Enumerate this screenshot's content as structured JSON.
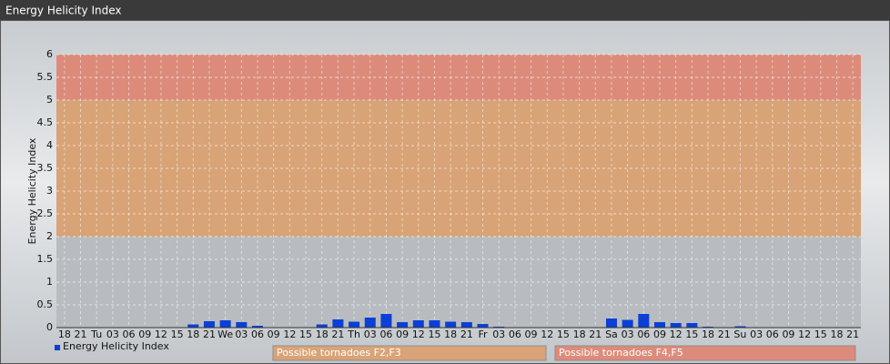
{
  "chart_data": {
    "type": "bar",
    "header": "Energy Helicity Index",
    "y_label": "Energy Helicity Index",
    "categories": [
      "18",
      "21",
      "Tu",
      "03",
      "06",
      "09",
      "12",
      "15",
      "18",
      "21",
      "We",
      "03",
      "06",
      "09",
      "12",
      "15",
      "18",
      "21",
      "Th",
      "03",
      "06",
      "09",
      "12",
      "15",
      "18",
      "21",
      "Fr",
      "03",
      "06",
      "09",
      "12",
      "15",
      "18",
      "21",
      "Sa",
      "03",
      "06",
      "09",
      "12",
      "15",
      "18",
      "21",
      "Su",
      "03",
      "06",
      "09",
      "12",
      "15",
      "18",
      "21"
    ],
    "series": [
      {
        "name": "Energy Helicity Index",
        "color": "#0b3fd6",
        "values": [
          0.01,
          0.01,
          0.01,
          0.01,
          0.01,
          0.01,
          0.01,
          0.01,
          0.07,
          0.14,
          0.16,
          0.12,
          0.04,
          0.01,
          0.01,
          0.01,
          0.07,
          0.18,
          0.13,
          0.22,
          0.3,
          0.12,
          0.16,
          0.16,
          0.13,
          0.12,
          0.08,
          0.02,
          0.01,
          0.01,
          0.01,
          0.01,
          0.01,
          0.01,
          0.2,
          0.17,
          0.3,
          0.12,
          0.1,
          0.1,
          0.02,
          0.01,
          0.03,
          0.01,
          0.01,
          0.01,
          0.01,
          0.01,
          0.01,
          0.01
        ]
      }
    ],
    "ylim": [
      0,
      6
    ],
    "yticks": [
      0,
      0.5,
      1,
      1.5,
      2,
      2.5,
      3,
      3.5,
      4,
      4.5,
      5,
      5.5,
      6
    ],
    "grid": true,
    "bands": [
      {
        "from": 2,
        "to": 5,
        "color": "#dca06e",
        "label": "Possible tornadoes F2,F3"
      },
      {
        "from": 5,
        "to": 6,
        "color": "#e08572",
        "label": "Possible tornadoes F4,F5"
      }
    ]
  }
}
